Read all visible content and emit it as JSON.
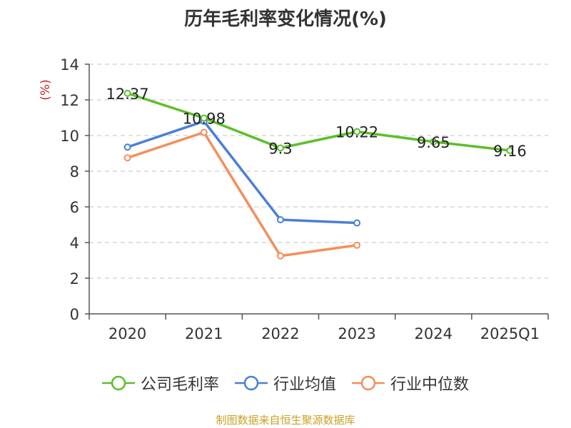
{
  "chart_data": {
    "type": "line",
    "title": "历年毛利率变化情况(%)",
    "ylabel": "(%)",
    "categories": [
      "2020",
      "2021",
      "2022",
      "2023",
      "2024",
      "2025Q1"
    ],
    "ylim": [
      0,
      14
    ],
    "yticks": [
      "0",
      "2",
      "4",
      "6",
      "8",
      "10",
      "12",
      "14"
    ],
    "grid": "horizontal-dashed",
    "legend_position": "bottom",
    "series": [
      {
        "name": "公司毛利率",
        "color": "#5cbf2a",
        "values": [
          12.37,
          10.98,
          9.3,
          10.22,
          9.65,
          9.16
        ],
        "labels": [
          "12.37",
          "10.98",
          "9.3",
          "10.22",
          "9.65",
          "9.16"
        ]
      },
      {
        "name": "行业均值",
        "color": "#4a7fd8",
        "values": [
          9.35,
          10.8,
          5.28,
          5.1,
          null,
          null
        ]
      },
      {
        "name": "行业中位数",
        "color": "#f58e5a",
        "values": [
          8.75,
          10.18,
          3.25,
          3.85,
          null,
          null
        ]
      }
    ]
  },
  "source": "制图数据来自恒生聚源数据库"
}
